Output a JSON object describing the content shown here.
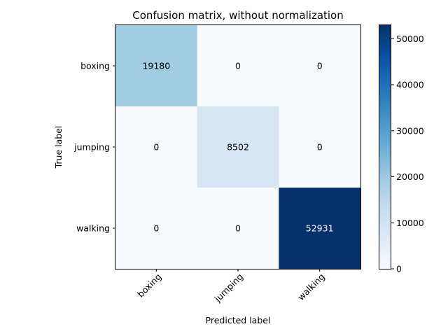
{
  "chart_data": {
    "type": "heatmap",
    "title": "Confusion matrix, without normalization",
    "xlabel": "Predicted label",
    "ylabel": "True label",
    "x_categories": [
      "boxing",
      "jumping",
      "walking"
    ],
    "y_categories": [
      "boxing",
      "jumping",
      "walking"
    ],
    "values": [
      [
        19180,
        0,
        0
      ],
      [
        0,
        8502,
        0
      ],
      [
        0,
        0,
        52931
      ]
    ],
    "colormap": "Blues",
    "colorbar": {
      "min": 0,
      "max": 52931,
      "ticks": [
        0,
        10000,
        20000,
        30000,
        40000,
        50000
      ],
      "tick_labels": [
        "0",
        "10000",
        "20000",
        "30000",
        "40000",
        "50000"
      ]
    }
  }
}
